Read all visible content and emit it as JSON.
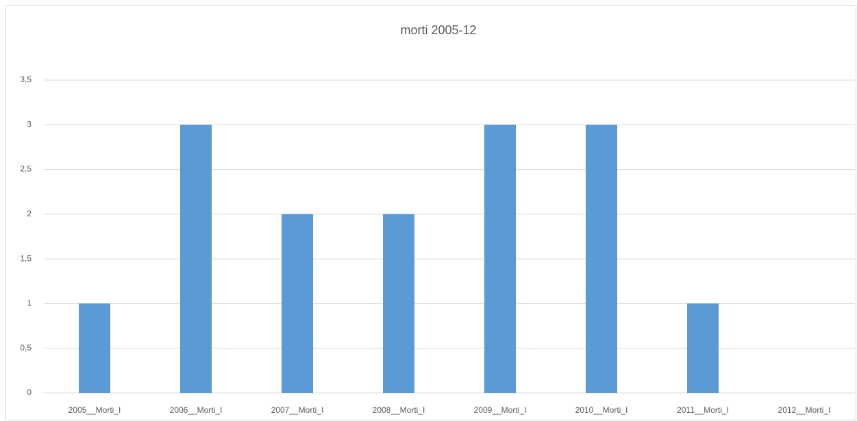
{
  "chart_data": {
    "type": "bar",
    "title": "morti 2005-12",
    "categories": [
      "2005__Morti_I",
      "2006__Morti_I",
      "2007__Morti_I",
      "2008__Morti_I",
      "2009__Morti_I",
      "2010__Morti_I",
      "2011__Morti_I",
      "2012__Morti_I"
    ],
    "values": [
      1,
      3,
      2,
      2,
      3,
      3,
      1,
      0
    ],
    "color": "#5b9bd5",
    "ylim": [
      0,
      3.5
    ],
    "yticks": [
      0,
      {
        "value": 0.5,
        "label": "0,5"
      },
      1,
      {
        "value": 1.5,
        "label": "1,5"
      },
      2,
      {
        "value": 2.5,
        "label": "2,5"
      },
      3,
      {
        "value": 3.5,
        "label": "3,5"
      }
    ],
    "grid": true
  }
}
